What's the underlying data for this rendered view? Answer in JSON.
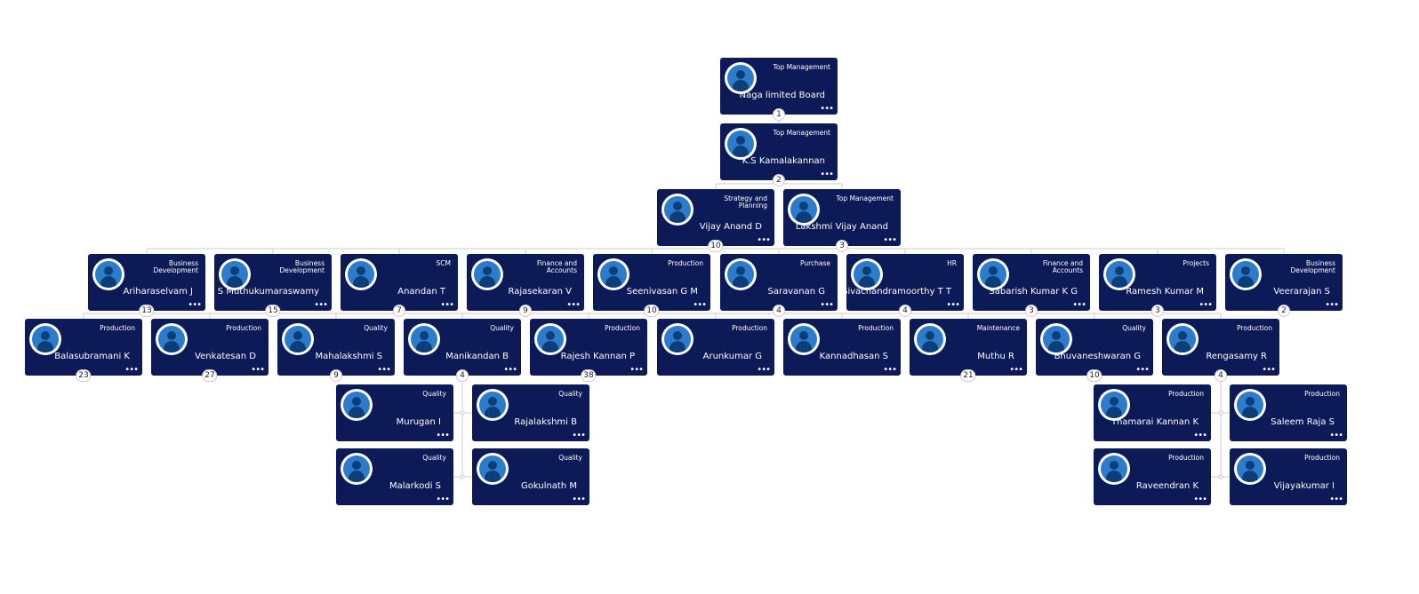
{
  "colors": {
    "card_bg": "#0c1a57",
    "avatar_ring": "#2c7ccb",
    "line": "#c9ccd6"
  },
  "more_glyph": "•••",
  "nodes": [
    {
      "id": "n1",
      "name": "Naga limited Board",
      "dept": "Top Management",
      "count": "1",
      "icon": "user-avatar-icon"
    },
    {
      "id": "n2",
      "name": "K.S Kamalakannan",
      "dept": "Top Management",
      "count": "2",
      "icon": "user-avatar-icon"
    },
    {
      "id": "n3",
      "name": "Vijay Anand D",
      "dept": "Strategy and Planning",
      "count": "10",
      "icon": "user-avatar-icon"
    },
    {
      "id": "n4",
      "name": "Lakshmi Vijay Anand",
      "dept": "Top Management",
      "count": "3",
      "icon": "user-avatar-icon"
    },
    {
      "id": "n5",
      "name": "Ariharaselvam J",
      "dept": "Business Development",
      "count": "13",
      "icon": "user-avatar-icon"
    },
    {
      "id": "n6",
      "name": "S Muthukumaraswamy",
      "dept": "Business Development",
      "count": "15",
      "icon": "user-avatar-icon"
    },
    {
      "id": "n7",
      "name": "Anandan T",
      "dept": "SCM",
      "count": "7",
      "icon": "user-avatar-icon"
    },
    {
      "id": "n8",
      "name": "Rajasekaran V",
      "dept": "Finance and Accounts",
      "count": "9",
      "icon": "user-avatar-icon"
    },
    {
      "id": "n9",
      "name": "Seenivasan G M",
      "dept": "Production",
      "count": "10",
      "icon": "user-avatar-icon"
    },
    {
      "id": "n10",
      "name": "Saravanan G",
      "dept": "Purchase",
      "count": "4",
      "icon": "user-avatar-icon"
    },
    {
      "id": "n11",
      "name": "Sivachandramoorthy T T",
      "dept": "HR",
      "count": "4",
      "icon": "user-avatar-icon"
    },
    {
      "id": "n12",
      "name": "Sabarish Kumar K G",
      "dept": "Finance and Accounts",
      "count": "3",
      "icon": "user-avatar-icon"
    },
    {
      "id": "n13",
      "name": "Ramesh Kumar M",
      "dept": "Projects",
      "count": "3",
      "icon": "user-avatar-icon"
    },
    {
      "id": "n14",
      "name": "Veerarajan S",
      "dept": "Business Development",
      "count": "2",
      "icon": "user-avatar-icon"
    },
    {
      "id": "n15",
      "name": "Balasubramani K",
      "dept": "Production",
      "count": "23",
      "icon": "user-avatar-icon"
    },
    {
      "id": "n16",
      "name": "Venkatesan D",
      "dept": "Production",
      "count": "27",
      "icon": "user-avatar-icon"
    },
    {
      "id": "n17",
      "name": "Mahalakshmi S",
      "dept": "Quality",
      "count": "9",
      "icon": "user-avatar-icon"
    },
    {
      "id": "n18",
      "name": "Manikandan B",
      "dept": "Quality",
      "count": "4",
      "icon": "user-avatar-icon"
    },
    {
      "id": "n19",
      "name": "Rajesh Kannan P",
      "dept": "Production",
      "count": "38",
      "icon": "user-avatar-icon"
    },
    {
      "id": "n20",
      "name": "Arunkumar G",
      "dept": "Production",
      "count": "",
      "icon": "user-avatar-icon"
    },
    {
      "id": "n21",
      "name": "Kannadhasan S",
      "dept": "Production",
      "count": "",
      "icon": "user-avatar-icon"
    },
    {
      "id": "n22",
      "name": "Muthu R",
      "dept": "Maintenance",
      "count": "21",
      "icon": "user-avatar-icon"
    },
    {
      "id": "n23",
      "name": "Bhuvaneshwaran G",
      "dept": "Quality",
      "count": "10",
      "icon": "user-avatar-icon"
    },
    {
      "id": "n24",
      "name": "Rengasamy R",
      "dept": "Production",
      "count": "4",
      "icon": "user-avatar-icon"
    },
    {
      "id": "n25",
      "name": "Murugan I",
      "dept": "Quality",
      "count": "",
      "icon": "user-avatar-icon"
    },
    {
      "id": "n26",
      "name": "Rajalakshmi B",
      "dept": "Quality",
      "count": "",
      "icon": "user-avatar-icon"
    },
    {
      "id": "n27",
      "name": "Malarkodi S",
      "dept": "Quality",
      "count": "",
      "icon": "user-avatar-icon"
    },
    {
      "id": "n28",
      "name": "Gokulnath M",
      "dept": "Quality",
      "count": "",
      "icon": "user-avatar-icon"
    },
    {
      "id": "n29",
      "name": "Thamarai Kannan K",
      "dept": "Production",
      "count": "",
      "icon": "user-avatar-icon"
    },
    {
      "id": "n30",
      "name": "Saleem Raja S",
      "dept": "Production",
      "count": "",
      "icon": "user-avatar-icon"
    },
    {
      "id": "n31",
      "name": "Raveendran K",
      "dept": "Production",
      "count": "",
      "icon": "user-avatar-icon"
    },
    {
      "id": "n32",
      "name": "Vijayakumar I",
      "dept": "Production",
      "count": "",
      "icon": "user-avatar-icon"
    }
  ],
  "edges": [
    [
      "n1",
      "n2"
    ],
    [
      "n2",
      "n3"
    ],
    [
      "n2",
      "n4"
    ],
    [
      "n3",
      "n5"
    ],
    [
      "n3",
      "n6"
    ],
    [
      "n3",
      "n7"
    ],
    [
      "n3",
      "n8"
    ],
    [
      "n3",
      "n9"
    ],
    [
      "n3",
      "n10"
    ],
    [
      "n3",
      "n11"
    ],
    [
      "n3",
      "n12"
    ],
    [
      "n3",
      "n13"
    ],
    [
      "n3",
      "n14"
    ],
    [
      "n9",
      "n15"
    ],
    [
      "n9",
      "n16"
    ],
    [
      "n9",
      "n17"
    ],
    [
      "n9",
      "n18"
    ],
    [
      "n9",
      "n19"
    ],
    [
      "n9",
      "n20"
    ],
    [
      "n9",
      "n21"
    ],
    [
      "n9",
      "n22"
    ],
    [
      "n9",
      "n23"
    ],
    [
      "n9",
      "n24"
    ],
    [
      "n18",
      "n25"
    ],
    [
      "n18",
      "n26"
    ],
    [
      "n18",
      "n27"
    ],
    [
      "n18",
      "n28"
    ],
    [
      "n24",
      "n29"
    ],
    [
      "n24",
      "n30"
    ],
    [
      "n24",
      "n31"
    ],
    [
      "n24",
      "n32"
    ]
  ]
}
